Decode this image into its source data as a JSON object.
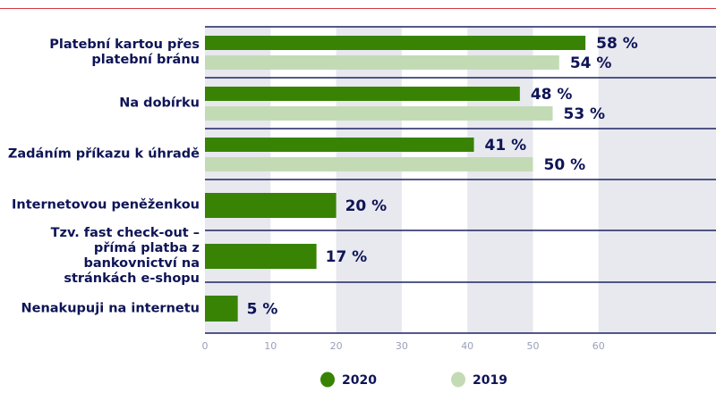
{
  "chart_data": {
    "type": "bar",
    "orientation": "horizontal",
    "categories": [
      "Platební kartou přes platební bránu",
      "Na dobírku",
      "Zadáním příkazu k úhradě",
      "Internetovou peněženkou",
      "Tzv. fast check-out – přímá platba z bankovnictví na stránkách e-shopu",
      "Nenakupuji na internetu"
    ],
    "series": [
      {
        "name": "2020",
        "values": [
          58,
          48,
          41,
          20,
          17,
          5
        ],
        "labels": [
          "58 %",
          "48 %",
          "41 %",
          "20 %",
          "17 %",
          "5 %"
        ],
        "color": "#388304"
      },
      {
        "name": "2019",
        "values": [
          54,
          53,
          50,
          null,
          null,
          null
        ],
        "labels": [
          "54 %",
          "53 %",
          "50 %"
        ],
        "color": "#c3dbb5"
      }
    ],
    "xlim": [
      0,
      70
    ],
    "xticks": [
      "0",
      "10",
      "20",
      "30",
      "40",
      "50",
      "60"
    ],
    "grid": "alternating vertical bands",
    "legend": "bottom"
  }
}
